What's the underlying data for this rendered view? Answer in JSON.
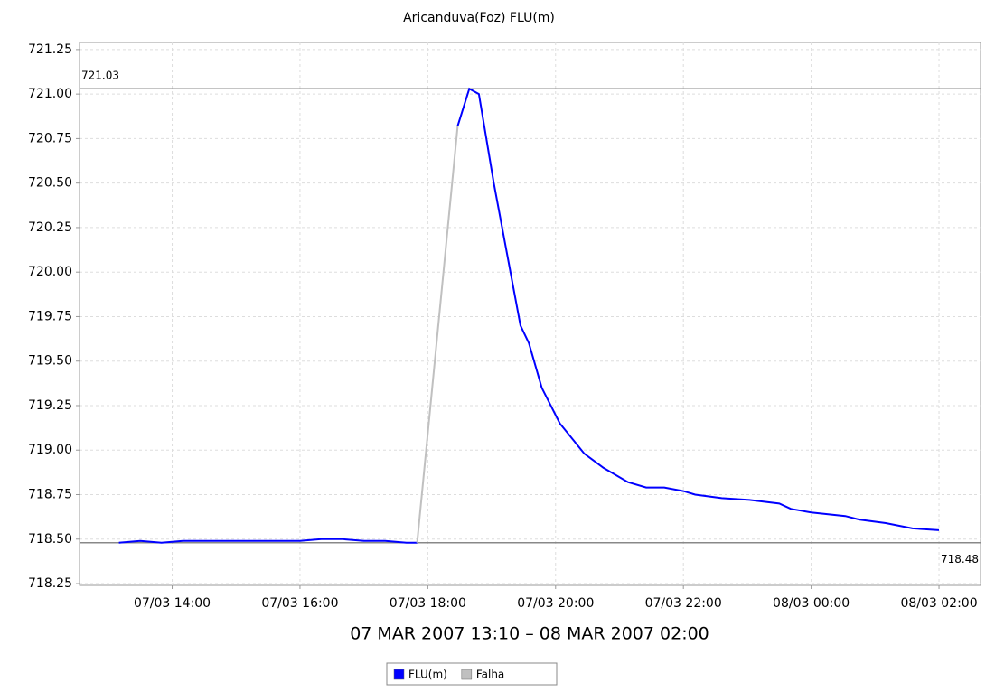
{
  "chart_data": {
    "type": "line",
    "title": "Aricanduva(Foz) FLU(m)",
    "x_label": "07 MAR 2007 13:10 – 08 MAR 2007 02:00",
    "series": [
      {
        "name": "FLU(m)",
        "color": "#0000ff",
        "x": [
          "07/03 13:10",
          "07/03 13:30",
          "07/03 13:50",
          "07/03 14:10",
          "07/03 14:40",
          "07/03 15:10",
          "07/03 15:40",
          "07/03 16:00",
          "07/03 16:20",
          "07/03 16:40",
          "07/03 17:00",
          "07/03 17:20",
          "07/03 17:40",
          "07/03 17:50",
          null,
          "07/03 18:28",
          "07/03 18:39",
          "07/03 18:48",
          "07/03 19:02",
          "07/03 19:27",
          "07/03 19:35",
          "07/03 19:47",
          "07/03 20:04",
          "07/03 20:27",
          "07/03 20:45",
          "07/03 21:08",
          "07/03 21:25",
          "07/03 21:42",
          "07/03 22:00",
          "07/03 22:11",
          "07/03 22:36",
          "07/03 23:02",
          "07/03 23:30",
          "07/03 23:41",
          "08/03 00:00",
          "08/03 00:32",
          "08/03 00:45",
          "08/03 01:10",
          "08/03 01:35",
          "08/03 02:00"
        ],
        "values": [
          718.48,
          718.49,
          718.48,
          718.49,
          718.49,
          718.49,
          718.49,
          718.49,
          718.5,
          718.5,
          718.49,
          718.49,
          718.48,
          718.48,
          null,
          720.82,
          721.03,
          721.0,
          720.5,
          719.7,
          719.6,
          719.35,
          719.15,
          718.98,
          718.9,
          718.82,
          718.79,
          718.79,
          718.77,
          718.75,
          718.73,
          718.72,
          718.7,
          718.67,
          718.65,
          718.63,
          718.61,
          718.59,
          718.56,
          718.55
        ]
      },
      {
        "name": "Falha",
        "color": "#c0c0c0",
        "x": [
          "07/03 17:50",
          "07/03 18:28"
        ],
        "values": [
          718.48,
          720.82
        ]
      }
    ],
    "xlim": [
      "07/03 12:33",
      "08/03 02:39"
    ],
    "xticks": [
      "07/03 14:00",
      "07/03 16:00",
      "07/03 18:00",
      "07/03 20:00",
      "07/03 22:00",
      "08/03 00:00",
      "08/03 02:00"
    ],
    "ylim": [
      718.24,
      721.29
    ],
    "yticks": [
      718.25,
      {
        "value": 718.5,
        "label": "718.50"
      },
      718.75,
      {
        "value": 719.0,
        "label": "719.00"
      },
      719.25,
      {
        "value": 719.5,
        "label": "719.50"
      },
      719.75,
      {
        "value": 720.0,
        "label": "720.00"
      },
      720.25,
      {
        "value": 720.5,
        "label": "720.50"
      },
      720.75,
      {
        "value": 721.0,
        "label": "721.00"
      },
      721.25
    ],
    "markers": [
      721.03,
      718.48
    ],
    "grid": true,
    "legend": "bottom"
  }
}
